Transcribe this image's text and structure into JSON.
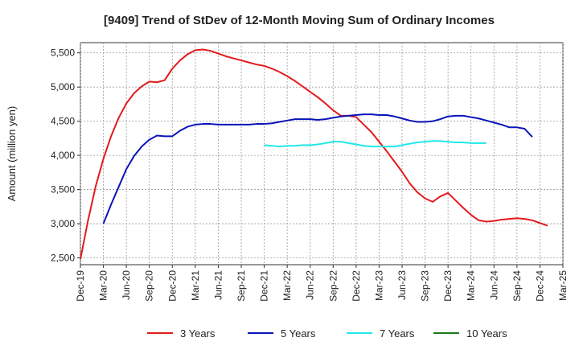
{
  "chart_data": {
    "type": "line",
    "title": "[9409]  Trend of StDev of 12-Month Moving Sum of Ordinary Incomes",
    "ylabel": "Amount (million yen)",
    "xlabel": "",
    "ylim": [
      2400,
      5650
    ],
    "yticks": [
      2500,
      3000,
      3500,
      4000,
      4500,
      5000,
      5500
    ],
    "ytick_labels": [
      "2,500",
      "3,000",
      "3,500",
      "4,000",
      "4,500",
      "5,000",
      "5,500"
    ],
    "x_months": [
      "Dec-19",
      "Jan-20",
      "Feb-20",
      "Mar-20",
      "Apr-20",
      "May-20",
      "Jun-20",
      "Jul-20",
      "Aug-20",
      "Sep-20",
      "Oct-20",
      "Nov-20",
      "Dec-20",
      "Jan-21",
      "Feb-21",
      "Mar-21",
      "Apr-21",
      "May-21",
      "Jun-21",
      "Jul-21",
      "Aug-21",
      "Sep-21",
      "Oct-21",
      "Nov-21",
      "Dec-21",
      "Jan-22",
      "Feb-22",
      "Mar-22",
      "Apr-22",
      "May-22",
      "Jun-22",
      "Jul-22",
      "Aug-22",
      "Sep-22",
      "Oct-22",
      "Nov-22",
      "Dec-22",
      "Jan-23",
      "Feb-23",
      "Mar-23",
      "Apr-23",
      "May-23",
      "Jun-23",
      "Jul-23",
      "Aug-23",
      "Sep-23",
      "Oct-23",
      "Nov-23",
      "Dec-23",
      "Jan-24",
      "Feb-24",
      "Mar-24",
      "Apr-24",
      "May-24",
      "Jun-24",
      "Jul-24",
      "Aug-24",
      "Sep-24",
      "Oct-24",
      "Nov-24",
      "Dec-24",
      "Jan-25",
      "Feb-25",
      "Mar-25"
    ],
    "xticks": [
      "Dec-19",
      "Mar-20",
      "Jun-20",
      "Sep-20",
      "Dec-20",
      "Mar-21",
      "Jun-21",
      "Sep-21",
      "Dec-21",
      "Mar-22",
      "Jun-22",
      "Sep-22",
      "Dec-22",
      "Mar-23",
      "Jun-23",
      "Sep-23",
      "Dec-23",
      "Mar-24",
      "Jun-24",
      "Sep-24",
      "Dec-24",
      "Mar-25"
    ],
    "series": [
      {
        "name": "3 Years",
        "color": "#e31a1c",
        "start": "Dec-19",
        "values": [
          2480,
          3050,
          3550,
          3950,
          4280,
          4550,
          4760,
          4910,
          5010,
          5080,
          5070,
          5100,
          5270,
          5390,
          5480,
          5540,
          5550,
          5530,
          5490,
          5450,
          5420,
          5390,
          5360,
          5330,
          5310,
          5270,
          5220,
          5160,
          5090,
          5010,
          4930,
          4850,
          4760,
          4660,
          4580,
          4580,
          4560,
          4450,
          4340,
          4200,
          4060,
          3910,
          3760,
          3590,
          3460,
          3370,
          3320,
          3400,
          3450,
          3340,
          3230,
          3130,
          3050,
          3030,
          3040,
          3060,
          3070,
          3080,
          3070,
          3050,
          3010,
          2970
        ]
      },
      {
        "name": "5 Years",
        "color": "#0a14b8",
        "start": "Mar-20",
        "values": [
          3000,
          3280,
          3540,
          3800,
          3990,
          4130,
          4230,
          4290,
          4280,
          4280,
          4360,
          4420,
          4450,
          4460,
          4460,
          4450,
          4450,
          4450,
          4450,
          4450,
          4460,
          4460,
          4470,
          4490,
          4510,
          4530,
          4530,
          4530,
          4520,
          4530,
          4550,
          4570,
          4580,
          4590,
          4600,
          4600,
          4590,
          4590,
          4570,
          4540,
          4510,
          4490,
          4490,
          4500,
          4530,
          4570,
          4580,
          4580,
          4560,
          4540,
          4510,
          4480,
          4450,
          4410,
          4410,
          4390,
          4270
        ]
      },
      {
        "name": "7 Years",
        "color": "#22e8e8",
        "start": "Dec-21",
        "values": [
          4150,
          4140,
          4130,
          4140,
          4140,
          4150,
          4150,
          4160,
          4180,
          4200,
          4200,
          4180,
          4160,
          4140,
          4130,
          4130,
          4130,
          4130,
          4150,
          4170,
          4190,
          4200,
          4210,
          4210,
          4200,
          4190,
          4190,
          4180,
          4180,
          4180
        ]
      },
      {
        "name": "10 Years",
        "color": "#1a7a1a",
        "start": "Dec-24",
        "values": []
      }
    ],
    "grid": true,
    "legend_position": "bottom"
  }
}
